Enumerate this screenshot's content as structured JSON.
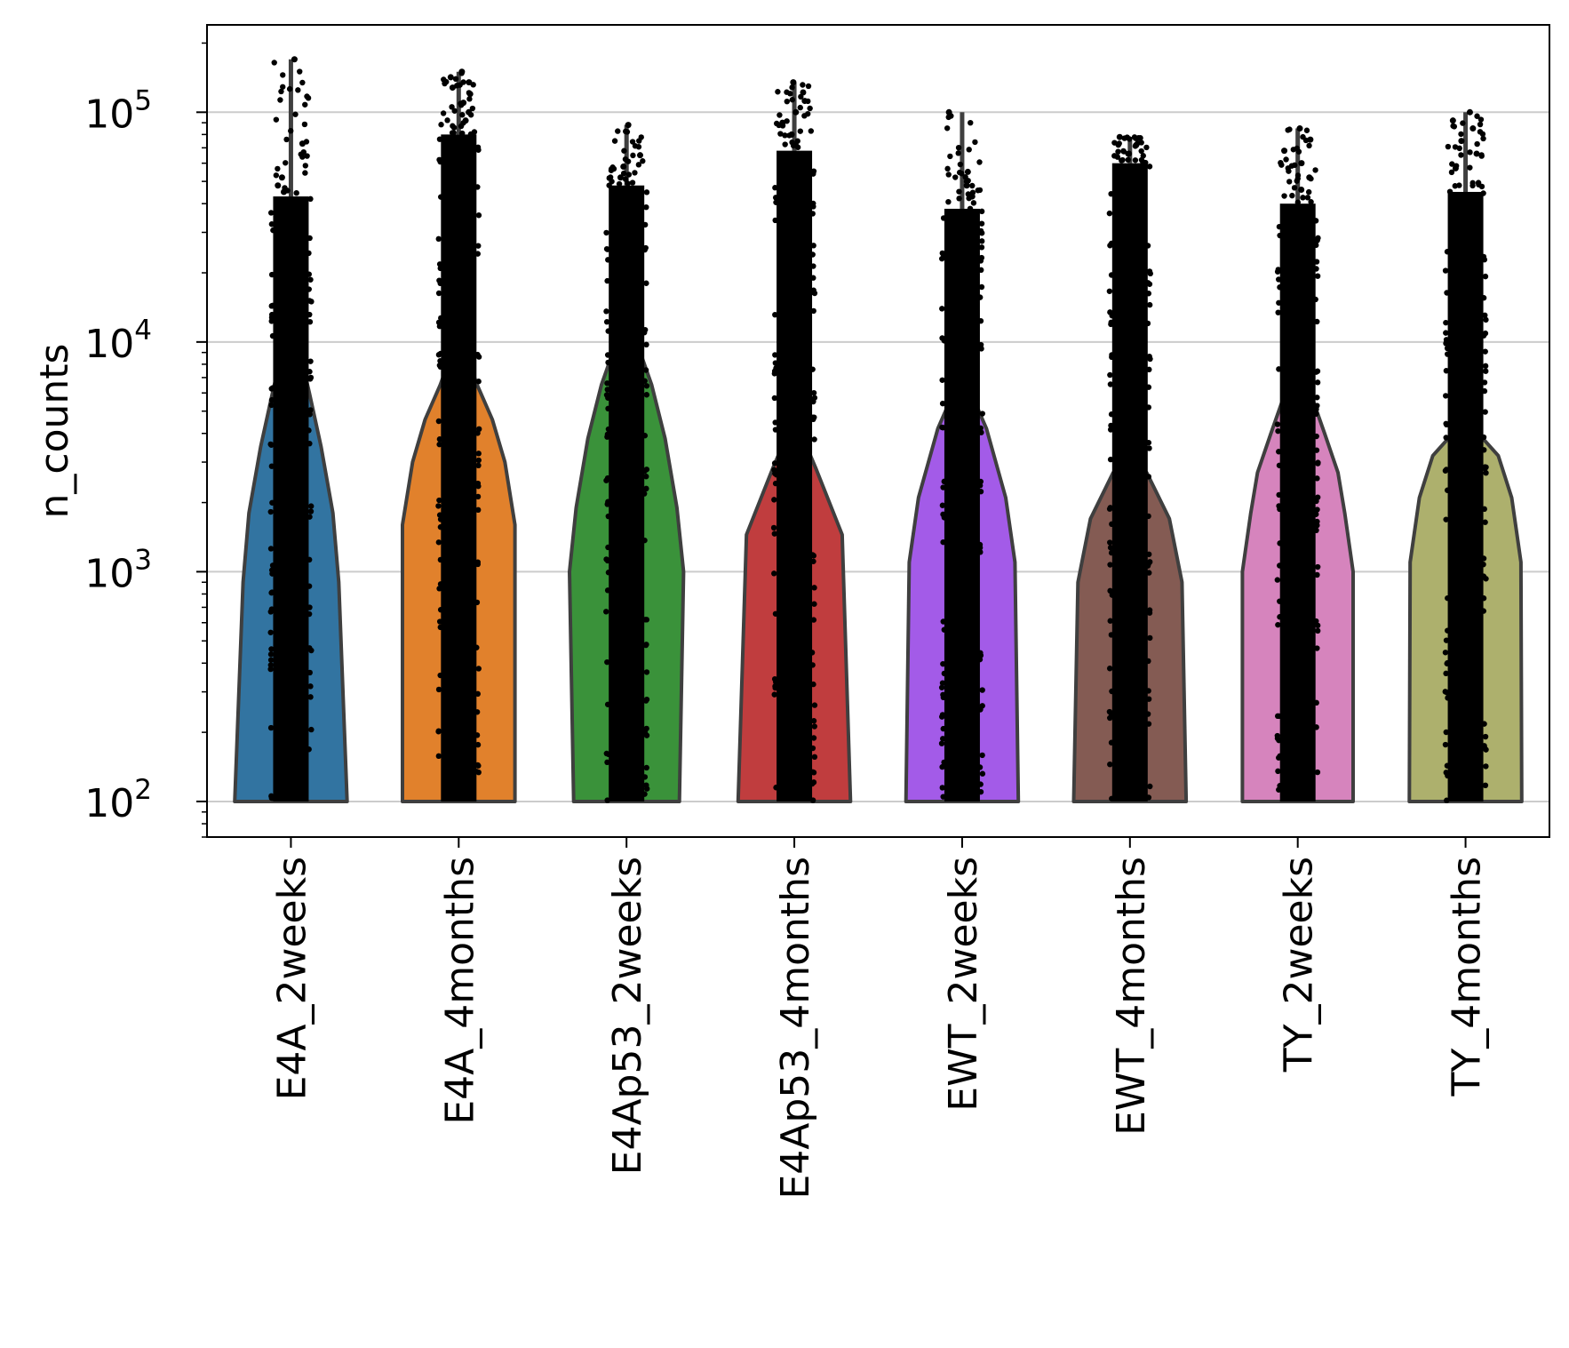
{
  "chart_data": {
    "type": "violin",
    "title": "",
    "xlabel": "",
    "ylabel": "n_counts",
    "yscale": "log",
    "ylim": [
      70,
      240000
    ],
    "grid": "horizontal",
    "y_ticks": [
      {
        "value": 100,
        "base": "10",
        "exp": "2"
      },
      {
        "value": 1000,
        "base": "10",
        "exp": "3"
      },
      {
        "value": 10000,
        "base": "10",
        "exp": "4"
      },
      {
        "value": 100000,
        "base": "10",
        "exp": "5"
      }
    ],
    "categories": [
      "E4A_2weeks",
      "E4A_4months",
      "E4Ap53_2weeks",
      "E4Ap53_4months",
      "EWT_2weeks",
      "EWT_4months",
      "TY_2weeks",
      "TY_4months"
    ],
    "colors": [
      "#3274a1",
      "#e1812c",
      "#3a923a",
      "#c03d3e",
      "#a35be8",
      "#845b53",
      "#d684bd",
      "#adb06d"
    ],
    "series": [
      {
        "color": "#3274a1",
        "violin": [
          [
            100,
            0.67
          ],
          [
            900,
            0.57
          ],
          [
            1800,
            0.5
          ],
          [
            3500,
            0.36
          ],
          [
            6000,
            0.22
          ],
          [
            10000,
            0.08
          ]
        ],
        "points_max": 43000,
        "outliers": [
          170000,
          73000,
          52000,
          48000,
          45000
        ]
      },
      {
        "color": "#e1812c",
        "violin": [
          [
            100,
            0.67
          ],
          [
            600,
            0.67
          ],
          [
            1600,
            0.67
          ],
          [
            3000,
            0.55
          ],
          [
            4600,
            0.4
          ],
          [
            6500,
            0.22
          ],
          [
            9000,
            0.08
          ]
        ],
        "points_max": 80000,
        "outliers": [
          150000,
          142000,
          135000,
          128000,
          120000,
          110000,
          100000,
          92000
        ]
      },
      {
        "color": "#3a923a",
        "violin": [
          [
            100,
            0.63
          ],
          [
            1000,
            0.68
          ],
          [
            1900,
            0.6
          ],
          [
            3800,
            0.46
          ],
          [
            6500,
            0.3
          ],
          [
            10000,
            0.12
          ]
        ],
        "points_max": 48000,
        "outliers": [
          88000,
          65000,
          58000,
          52000
        ]
      },
      {
        "color": "#c03d3e",
        "violin": [
          [
            100,
            0.67
          ],
          [
            1450,
            0.57
          ],
          [
            2800,
            0.26
          ],
          [
            4000,
            0.08
          ]
        ],
        "points_max": 68000,
        "outliers": [
          135000,
          122000,
          112000,
          100000,
          90000,
          80000
        ]
      },
      {
        "color": "#a35be8",
        "violin": [
          [
            100,
            0.67
          ],
          [
            1100,
            0.63
          ],
          [
            2100,
            0.52
          ],
          [
            4200,
            0.29
          ],
          [
            5500,
            0.15
          ]
        ],
        "points_max": 38000,
        "outliers": [
          100000,
          55000,
          48000,
          43000
        ]
      },
      {
        "color": "#845b53",
        "violin": [
          [
            100,
            0.67
          ],
          [
            900,
            0.62
          ],
          [
            1700,
            0.47
          ],
          [
            2700,
            0.2
          ]
        ],
        "points_max": 60000,
        "outliers": [
          78000,
          72000,
          66000
        ]
      },
      {
        "color": "#d684bd",
        "violin": [
          [
            100,
            0.66
          ],
          [
            1000,
            0.66
          ],
          [
            1800,
            0.56
          ],
          [
            2700,
            0.48
          ],
          [
            4000,
            0.32
          ],
          [
            6000,
            0.15
          ]
        ],
        "points_max": 40000,
        "outliers": [
          85000,
          76000,
          68000,
          60000,
          52000,
          46000
        ]
      },
      {
        "color": "#adb06d",
        "violin": [
          [
            100,
            0.67
          ],
          [
            1100,
            0.66
          ],
          [
            2100,
            0.55
          ],
          [
            3200,
            0.39
          ],
          [
            4200,
            0.1
          ]
        ],
        "points_max": 45000,
        "outliers": [
          100000,
          92000,
          85000,
          75000,
          66000,
          57000
        ]
      }
    ]
  }
}
